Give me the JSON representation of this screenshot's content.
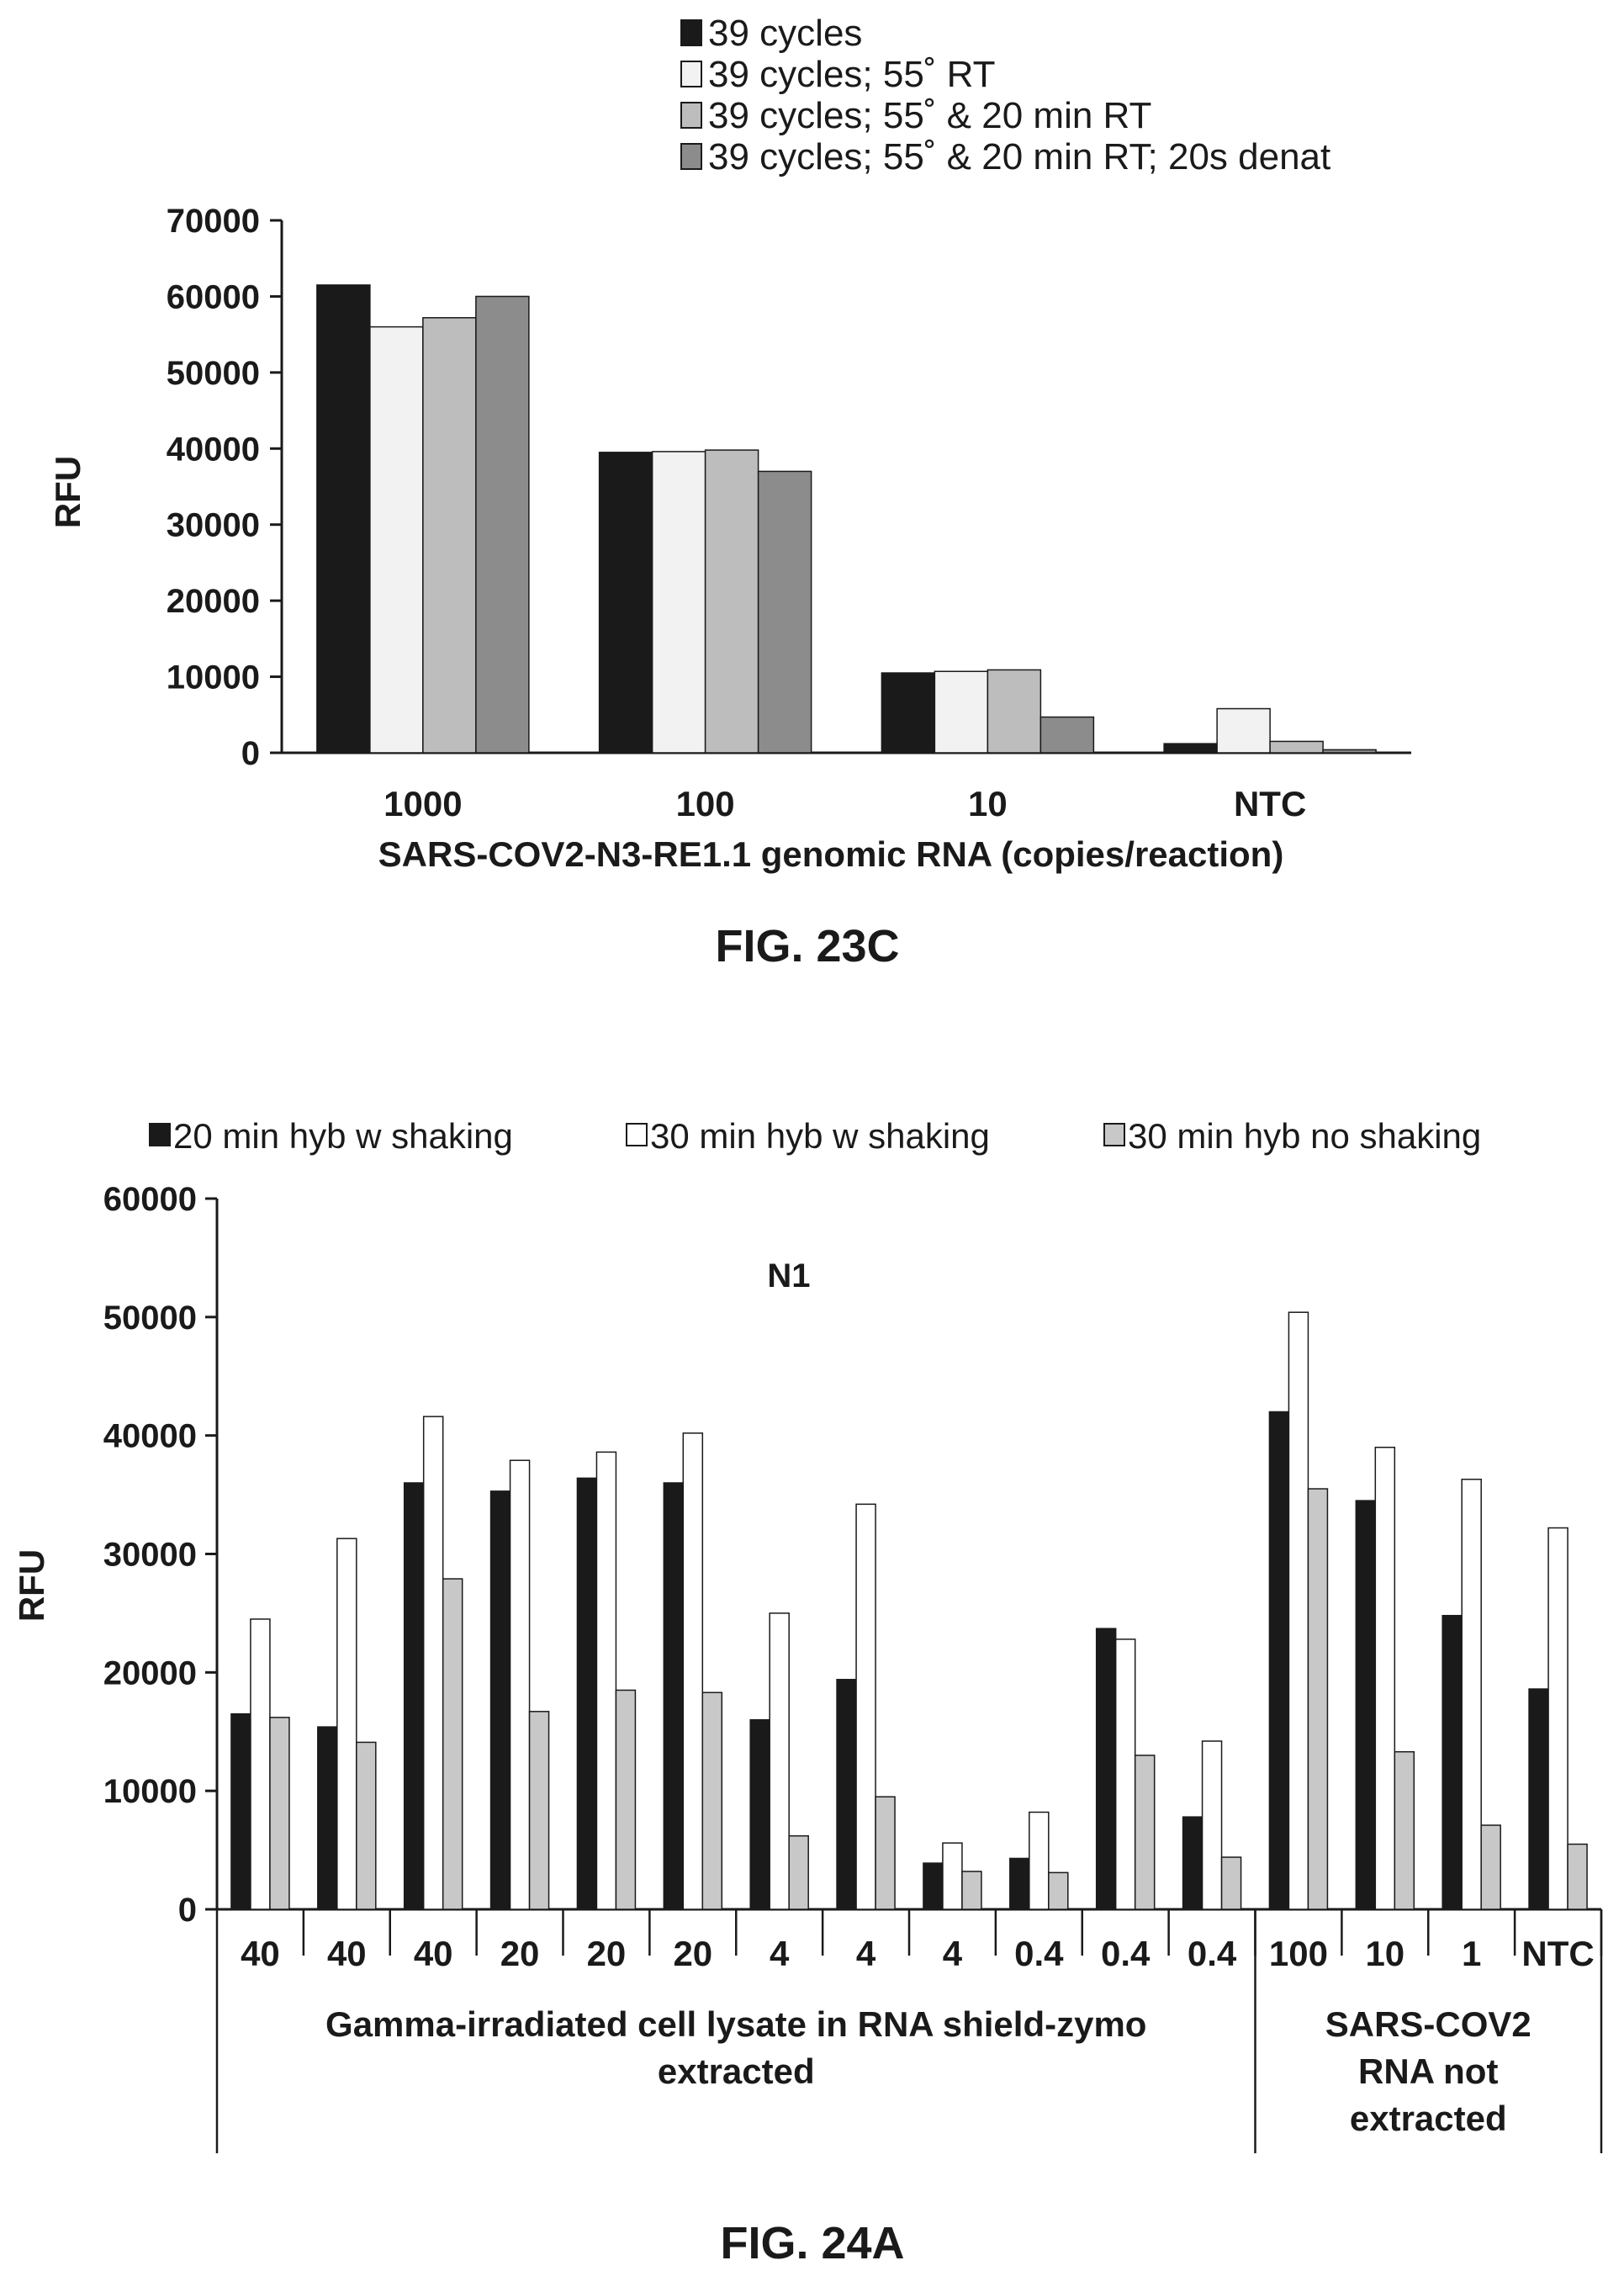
{
  "chart_data": [
    {
      "type": "bar",
      "figure_label": "FIG. 23C",
      "xlabel": "SARS-COV2-N3-RE1.1 genomic RNA  (copies/reaction)",
      "ylabel": "RFU",
      "ylim": [
        0,
        70000
      ],
      "yticks": [
        "0",
        "10000",
        "20000",
        "30000",
        "40000",
        "50000",
        "60000",
        "70000"
      ],
      "categories": [
        "1000",
        "100",
        "10",
        "NTC"
      ],
      "legend_position": "top",
      "series": [
        {
          "name": "39 cycles",
          "color": "#1a1a1a",
          "values": [
            61500,
            39500,
            10500,
            1200
          ]
        },
        {
          "name": "39 cycles; 55˚ RT",
          "color": "#f2f2f2",
          "values": [
            56000,
            39600,
            10700,
            5800
          ]
        },
        {
          "name": "39 cycles; 55˚ & 20 min RT",
          "color": "#bdbdbd",
          "values": [
            57200,
            39800,
            10900,
            1500
          ]
        },
        {
          "name": "39 cycles; 55˚ & 20 min RT; 20s denat",
          "color": "#8c8c8c",
          "values": [
            60000,
            37000,
            4700,
            400
          ]
        }
      ]
    },
    {
      "type": "bar",
      "figure_label": "FIG. 24A",
      "title": "N1",
      "ylabel": "RFU",
      "ylim": [
        0,
        60000
      ],
      "yticks": [
        "0",
        "10000",
        "20000",
        "30000",
        "40000",
        "50000",
        "60000"
      ],
      "categories": [
        "40",
        "40",
        "40",
        "20",
        "20",
        "20",
        "4",
        "4",
        "4",
        "0.4",
        "0.4",
        "0.4",
        "100",
        "10",
        "1",
        "NTC"
      ],
      "groups": [
        {
          "label_lines": [
            "Gamma-irradiated cell lysate in RNA shield-zymo",
            "extracted"
          ],
          "start": 0,
          "end": 11
        },
        {
          "label_lines": [
            "SARS-COV2",
            "RNA not",
            "extracted"
          ],
          "start": 12,
          "end": 15
        }
      ],
      "legend_position": "top",
      "series": [
        {
          "name": "20 min hyb w shaking",
          "color": "#1a1a1a",
          "values": [
            16500,
            15400,
            36000,
            35300,
            36400,
            36000,
            16000,
            19400,
            3900,
            4300,
            23700,
            7800,
            42000,
            34500,
            24800,
            18600
          ]
        },
        {
          "name": "30 min hyb w shaking",
          "color": "#ffffff",
          "values": [
            24500,
            31300,
            41600,
            37900,
            38600,
            40200,
            25000,
            34200,
            5600,
            8200,
            22800,
            14200,
            50400,
            39000,
            36300,
            32200
          ]
        },
        {
          "name": "30 min hyb no shaking",
          "color": "#c8c8c8",
          "values": [
            16200,
            14100,
            27900,
            16700,
            18500,
            18300,
            6200,
            9500,
            3200,
            3100,
            13000,
            4400,
            35500,
            13300,
            7100,
            5500
          ]
        }
      ]
    }
  ]
}
